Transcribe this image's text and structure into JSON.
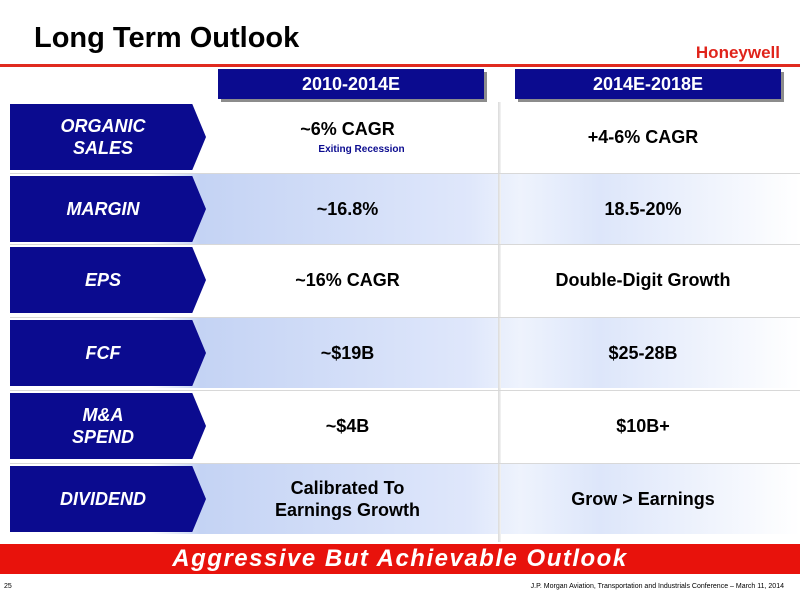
{
  "header": {
    "title": "Long Term Outlook",
    "logo_text": "Honeywell"
  },
  "columns": [
    "2010-2014E",
    "2014E-2018E"
  ],
  "rows": [
    {
      "label": "ORGANIC\nSALES",
      "c1": "~6% CAGR",
      "c1_note": "Exiting Recession",
      "c2": "+4-6% CAGR"
    },
    {
      "label": "MARGIN",
      "c1": "~16.8%",
      "c2": "18.5-20%"
    },
    {
      "label": "EPS",
      "c1": "~16% CAGR",
      "c2": "Double-Digit Growth"
    },
    {
      "label": "FCF",
      "c1": "~$19B",
      "c2": "$25-28B"
    },
    {
      "label": "M&A\nSPEND",
      "c1": "~$4B",
      "c2": "$10B+"
    },
    {
      "label": "DIVIDEND",
      "c1": "Calibrated To\nEarnings Growth",
      "c2": "Grow > Earnings"
    }
  ],
  "banner": "Aggressive But Achievable Outlook",
  "footer": {
    "page_number": "25",
    "text": "J.P. Morgan Aviation, Transportation and Industrials Conference – March 11, 2014"
  },
  "colors": {
    "brand_red": "#e0241b",
    "navy": "#0b0b8f",
    "row_shade": "#c4d3f4"
  }
}
